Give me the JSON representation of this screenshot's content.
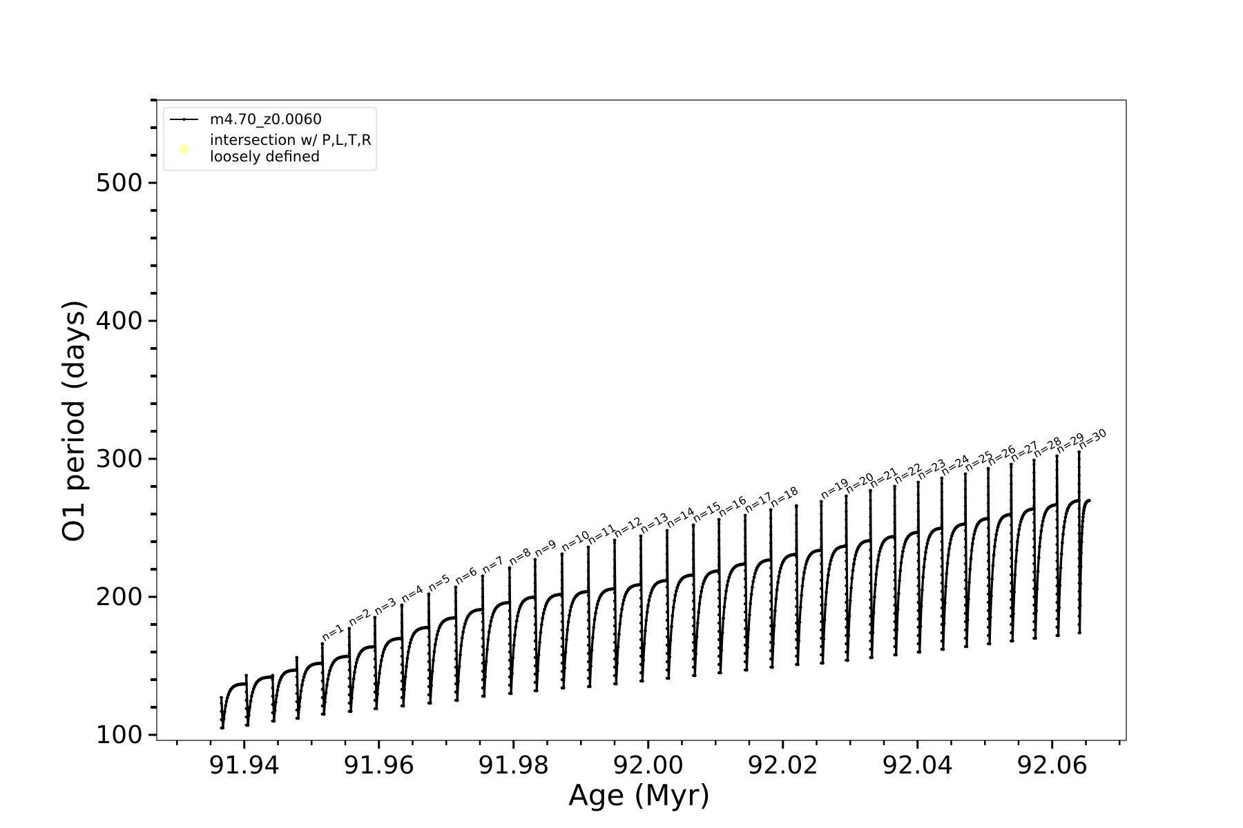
{
  "chart_data": {
    "type": "line",
    "title": "",
    "xlabel": "Age (Myr)",
    "ylabel": "O1 period (days)",
    "xlim": [
      91.927,
      92.071
    ],
    "ylim": [
      96,
      560
    ],
    "x_ticks": [
      "91.94",
      "91.96",
      "91.98",
      "92.00",
      "92.02",
      "92.04",
      "92.06"
    ],
    "x_tick_values": [
      91.94,
      91.96,
      91.98,
      92.0,
      92.02,
      92.04,
      92.06
    ],
    "y_ticks": [
      "100",
      "200",
      "300",
      "400",
      "500"
    ],
    "y_tick_values": [
      100,
      200,
      300,
      400,
      500
    ],
    "grid": false,
    "legend_position": "top-left",
    "legend": [
      {
        "label": "m4.70_z0.0060",
        "color": "#000000",
        "marker": "line"
      },
      {
        "label": "intersection w/ P,L,T,R loosely defined",
        "label_lines": [
          "intersection w/ P,L,T,R",
          "loosely defined"
        ],
        "color": "#ffffb0",
        "marker": "circle"
      }
    ],
    "series": [
      {
        "name": "m4.70_z0.0060",
        "color": "#000000",
        "pulses": [
          {
            "n": "",
            "x": 91.9366,
            "spike": 127,
            "dip": 105,
            "plateau": 137
          },
          {
            "n": "",
            "x": 91.9403,
            "spike": 143,
            "dip": 107,
            "plateau": 142
          },
          {
            "n": "",
            "x": 91.9442,
            "spike": 143,
            "dip": 110,
            "plateau": 147
          },
          {
            "n": "",
            "x": 91.9478,
            "spike": 156,
            "dip": 112,
            "plateau": 152
          },
          {
            "n": "n=1",
            "x": 91.9516,
            "spike": 166,
            "dip": 115,
            "plateau": 157
          },
          {
            "n": "n=2",
            "x": 91.9556,
            "spike": 177,
            "dip": 117,
            "plateau": 164
          },
          {
            "n": "n=3",
            "x": 91.9594,
            "spike": 185,
            "dip": 119,
            "plateau": 170
          },
          {
            "n": "n=4",
            "x": 91.9634,
            "spike": 194,
            "dip": 121,
            "plateau": 178
          },
          {
            "n": "n=5",
            "x": 91.9674,
            "spike": 202,
            "dip": 123,
            "plateau": 185
          },
          {
            "n": "n=6",
            "x": 91.9714,
            "spike": 207,
            "dip": 125,
            "plateau": 191
          },
          {
            "n": "n=7",
            "x": 91.9754,
            "spike": 215,
            "dip": 128,
            "plateau": 196
          },
          {
            "n": "n=8",
            "x": 91.9794,
            "spike": 221,
            "dip": 130,
            "plateau": 200
          },
          {
            "n": "n=9",
            "x": 91.9832,
            "spike": 227,
            "dip": 132,
            "plateau": 202
          },
          {
            "n": "n=10",
            "x": 91.9872,
            "spike": 231,
            "dip": 134,
            "plateau": 204
          },
          {
            "n": "n=11",
            "x": 91.9911,
            "spike": 236,
            "dip": 135,
            "plateau": 206
          },
          {
            "n": "n=12",
            "x": 91.995,
            "spike": 241,
            "dip": 137,
            "plateau": 209
          },
          {
            "n": "n=13",
            "x": 91.9989,
            "spike": 244,
            "dip": 139,
            "plateau": 212
          },
          {
            "n": "n=14",
            "x": 92.0028,
            "spike": 248,
            "dip": 141,
            "plateau": 216
          },
          {
            "n": "n=15",
            "x": 92.0067,
            "spike": 252,
            "dip": 143,
            "plateau": 219
          },
          {
            "n": "n=16",
            "x": 92.0105,
            "spike": 256,
            "dip": 145,
            "plateau": 224
          },
          {
            "n": "n=17",
            "x": 92.0144,
            "spike": 259,
            "dip": 147,
            "plateau": 227
          },
          {
            "n": "n=18",
            "x": 92.0182,
            "spike": 263,
            "dip": 149,
            "plateau": 231
          },
          {
            "n": "",
            "x": 92.022,
            "spike": 266,
            "dip": 151,
            "plateau": 234
          },
          {
            "n": "n=19",
            "x": 92.0257,
            "spike": 269,
            "dip": 152,
            "plateau": 237
          },
          {
            "n": "n=20",
            "x": 92.0294,
            "spike": 273,
            "dip": 154,
            "plateau": 241
          },
          {
            "n": "n=21",
            "x": 92.033,
            "spike": 277,
            "dip": 156,
            "plateau": 244
          },
          {
            "n": "n=22",
            "x": 92.0366,
            "spike": 280,
            "dip": 158,
            "plateau": 247
          },
          {
            "n": "n=23",
            "x": 92.0401,
            "spike": 283,
            "dip": 160,
            "plateau": 250
          },
          {
            "n": "n=24",
            "x": 92.0436,
            "spike": 286,
            "dip": 162,
            "plateau": 253
          },
          {
            "n": "n=25",
            "x": 92.0471,
            "spike": 289,
            "dip": 164,
            "plateau": 257
          },
          {
            "n": "n=26",
            "x": 92.0505,
            "spike": 293,
            "dip": 166,
            "plateau": 260
          },
          {
            "n": "n=27",
            "x": 92.0539,
            "spike": 296,
            "dip": 168,
            "plateau": 264
          },
          {
            "n": "n=28",
            "x": 92.0573,
            "spike": 299,
            "dip": 170,
            "plateau": 267
          },
          {
            "n": "n=29",
            "x": 92.0607,
            "spike": 302,
            "dip": 172,
            "plateau": 270
          },
          {
            "n": "n=30",
            "x": 92.064,
            "spike": 305,
            "dip": 174,
            "plateau": 272
          }
        ],
        "end": {
          "x": 92.0655,
          "y": 270
        }
      }
    ]
  }
}
